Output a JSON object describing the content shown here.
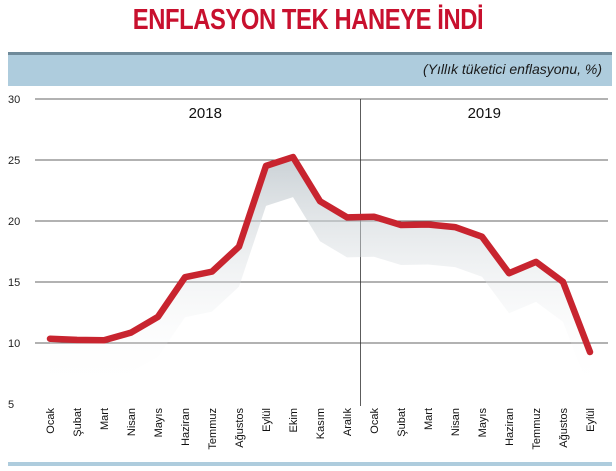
{
  "header": {
    "title": "ENFLASYON TEK HANEYE İNDİ",
    "subtitle": "(Yıllık tüketici enflasyonu, %)"
  },
  "chart_data": {
    "type": "line",
    "title": "ENFLASYON TEK HANEYE İNDİ",
    "subtitle": "(Yıllık tüketici enflasyonu, %)",
    "year_labels": [
      "2018",
      "2019"
    ],
    "categories": [
      "Ocak",
      "Şubat",
      "Mart",
      "Nisan",
      "Mayıs",
      "Haziran",
      "Temmuz",
      "Ağustos",
      "Eylül",
      "Ekim",
      "Kasım",
      "Aralık",
      "Ocak",
      "Şubat",
      "Mart",
      "Nisan",
      "Mayıs",
      "Haziran",
      "Temmuz",
      "Ağustos",
      "Eylül"
    ],
    "values": [
      10.35,
      10.26,
      10.23,
      10.85,
      12.15,
      15.39,
      15.85,
      17.9,
      24.52,
      25.24,
      21.62,
      20.3,
      20.35,
      19.67,
      19.71,
      19.5,
      18.71,
      15.72,
      16.65,
      15.01,
      9.26
    ],
    "ylim": [
      5,
      30
    ],
    "yticks": [
      5,
      10,
      15,
      20,
      25,
      30
    ],
    "grid": true,
    "line_color": "#c8242f"
  }
}
